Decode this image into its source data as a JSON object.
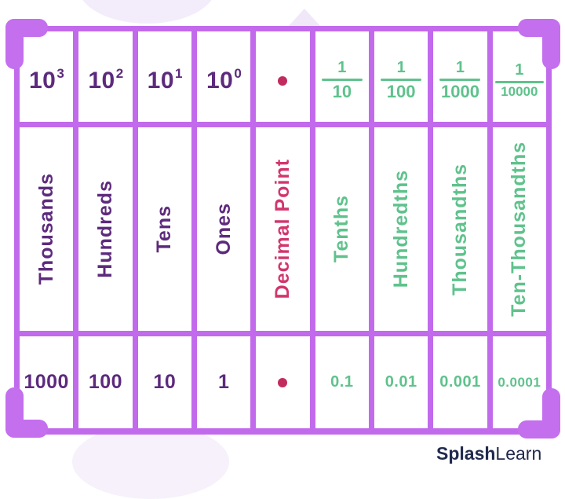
{
  "colors": {
    "grid": "#c26aec",
    "bracket": "#c46fee",
    "whole_text": "#5d2a7d",
    "decimal_text": "#d2356d",
    "decimal_dot": "#c22b5e",
    "fraction_text": "#5fc28c",
    "logo_text": "#212a4d"
  },
  "table": {
    "columns": [
      {
        "type": "whole",
        "power": {
          "base": "10",
          "exp": "3"
        },
        "name": "Thousands",
        "value": "1000"
      },
      {
        "type": "whole",
        "power": {
          "base": "10",
          "exp": "2"
        },
        "name": "Hundreds",
        "value": "100"
      },
      {
        "type": "whole",
        "power": {
          "base": "10",
          "exp": "1"
        },
        "name": "Tens",
        "value": "10"
      },
      {
        "type": "whole",
        "power": {
          "base": "10",
          "exp": "0"
        },
        "name": "Ones",
        "value": "1"
      },
      {
        "type": "decimal",
        "name": "Decimal Point",
        "value": "•"
      },
      {
        "type": "fraction",
        "fraction": {
          "numerator": "1",
          "denominator": "10"
        },
        "name": "Tenths",
        "value": "0.1"
      },
      {
        "type": "fraction",
        "fraction": {
          "numerator": "1",
          "denominator": "100"
        },
        "name": "Hundredths",
        "value": "0.01"
      },
      {
        "type": "fraction",
        "fraction": {
          "numerator": "1",
          "denominator": "1000"
        },
        "name": "Thousandths",
        "value": "0.001"
      },
      {
        "type": "fraction",
        "fraction": {
          "numerator": "1",
          "denominator": "10000"
        },
        "name": "Ten-Thousandths",
        "value": "0.0001"
      }
    ]
  },
  "branding": {
    "logo_bold": "Splash",
    "logo_light": "Learn"
  }
}
